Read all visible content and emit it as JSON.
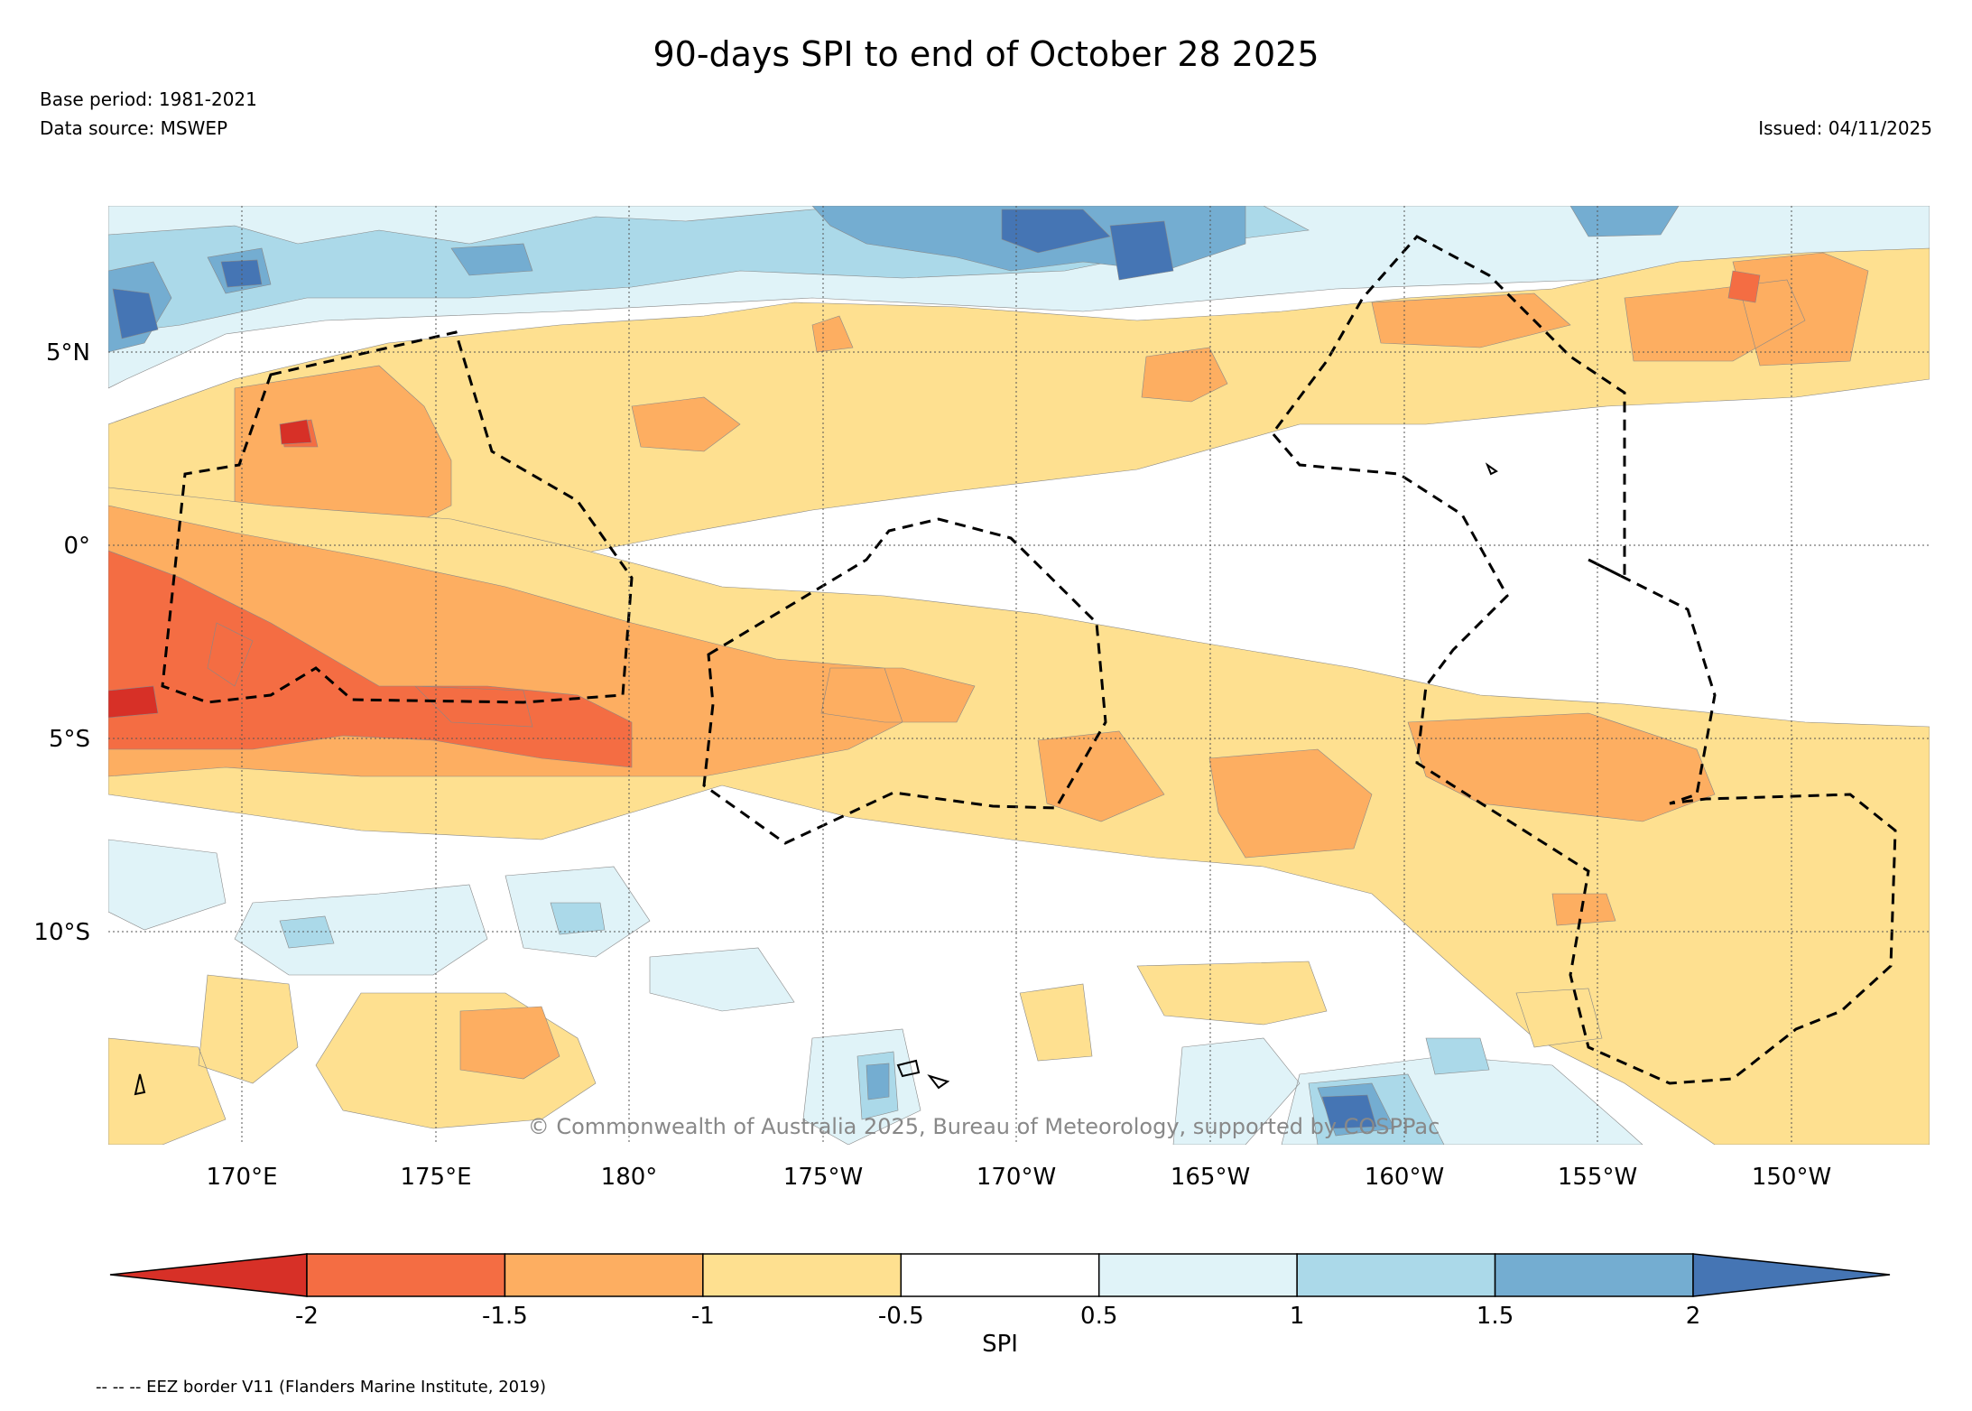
{
  "header": {
    "title": "90-days SPI to end of October 28 2025",
    "base_period": "Base period: 1981-2021",
    "data_source": "Data source: MSWEP",
    "issued": "Issued: 04/11/2025"
  },
  "map": {
    "lat_labels": [
      "5°N",
      "0°",
      "5°S",
      "10°S"
    ],
    "lon_labels": [
      "170°E",
      "175°E",
      "180°",
      "175°W",
      "170°W",
      "165°W",
      "160°W",
      "155°W",
      "150°W"
    ],
    "copyright": "© Commonwealth of Australia 2025, Bureau of Meteorology, supported by COSPPac",
    "colors": {
      "lt_m2": "#d73027",
      "m2_m15": "#f46d43",
      "m15_m1": "#fdae61",
      "m1_m05": "#fee090",
      "neutral": "#ffffff",
      "p05_p1": "#e0f3f8",
      "p1_p15": "#abd9e9",
      "p15_p2": "#74add1",
      "gt_p2": "#4575b4"
    }
  },
  "colorbar": {
    "label": "SPI",
    "ticks": [
      "-2",
      "-1.5",
      "-1",
      "-0.5",
      "0.5",
      "1",
      "1.5",
      "2"
    ],
    "colors": [
      "#d73027",
      "#f46d43",
      "#fdae61",
      "#fee090",
      "#ffffff",
      "#e0f3f8",
      "#abd9e9",
      "#74add1",
      "#4575b4"
    ]
  },
  "footnote": "-- -- -- EEZ border V11 (Flanders Marine Institute, 2019)"
}
